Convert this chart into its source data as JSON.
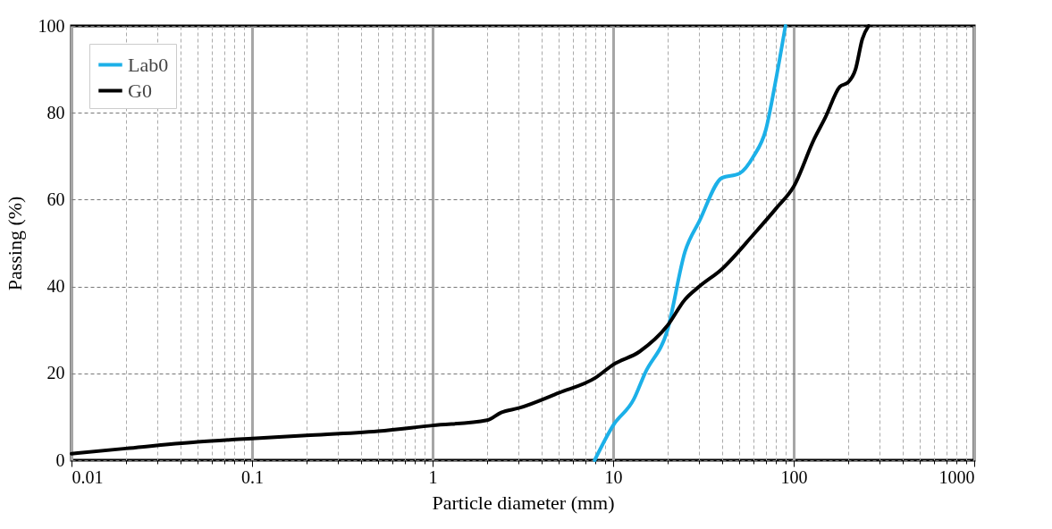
{
  "chart_data": {
    "type": "line",
    "xlabel": "Particle diameter (mm)",
    "ylabel": "Passing (%)",
    "log": "x",
    "xlim": [
      0.01,
      1000
    ],
    "xticks": [
      0.01,
      0.1,
      1,
      10,
      100,
      1000
    ],
    "ylim": [
      0,
      100
    ],
    "yticks": [
      0,
      20,
      40,
      60,
      80,
      100
    ],
    "grid": true,
    "legend": "top left",
    "line_style": "solid",
    "series": [
      {
        "name": "Lab0",
        "color": "#1cb0e8",
        "x": [
          7.9,
          10,
          13,
          15,
          20,
          25,
          30,
          40,
          50,
          60,
          70,
          80,
          90
        ],
        "values": [
          0,
          8,
          14,
          20,
          30,
          48,
          55,
          65,
          66,
          70,
          76,
          88,
          100
        ]
      },
      {
        "name": "G0",
        "color": "#000000",
        "x": [
          0.01,
          0.02,
          0.05,
          0.1,
          0.2,
          0.5,
          1,
          2,
          2.4,
          3,
          5,
          8,
          10,
          14,
          20,
          25,
          30,
          40,
          60,
          80,
          100,
          130,
          150,
          180,
          200,
          220,
          240,
          260
        ],
        "values": [
          1.5,
          2.7,
          4.2,
          5,
          5.7,
          6.7,
          8,
          9.2,
          11,
          12,
          15.5,
          19,
          22,
          25,
          31,
          37,
          40,
          44,
          52,
          58,
          63,
          74,
          79,
          86,
          87,
          90,
          97,
          100
        ]
      }
    ]
  }
}
